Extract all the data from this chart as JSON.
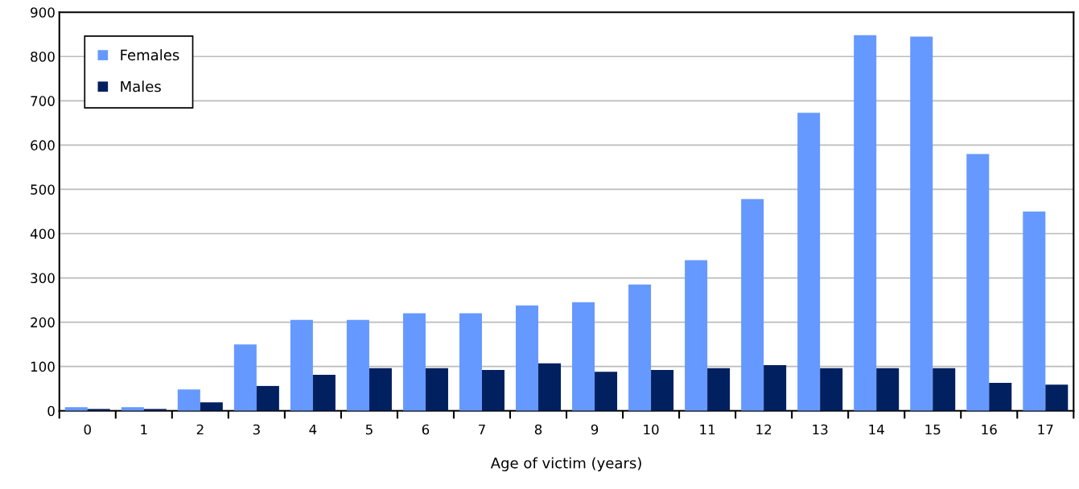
{
  "chart_data": {
    "type": "bar",
    "xlabel": "Age of victim (years)",
    "categories": [
      "0",
      "1",
      "2",
      "3",
      "4",
      "5",
      "6",
      "7",
      "8",
      "9",
      "10",
      "11",
      "12",
      "13",
      "14",
      "15",
      "16",
      "17"
    ],
    "series": [
      {
        "name": "Females",
        "color": "#6699ff",
        "values": [
          8,
          8,
          48,
          150,
          205,
          205,
          220,
          220,
          238,
          245,
          285,
          340,
          478,
          673,
          848,
          845,
          580,
          450
        ]
      },
      {
        "name": "Males",
        "color": "#002060",
        "values": [
          4,
          4,
          19,
          56,
          81,
          96,
          96,
          92,
          107,
          88,
          92,
          96,
          103,
          96,
          96,
          96,
          63,
          59
        ]
      }
    ],
    "ylim": [
      0,
      900
    ],
    "yticks": [
      0,
      100,
      200,
      300,
      400,
      500,
      600,
      700,
      800,
      900
    ],
    "grid": "y",
    "legend": "top left"
  }
}
